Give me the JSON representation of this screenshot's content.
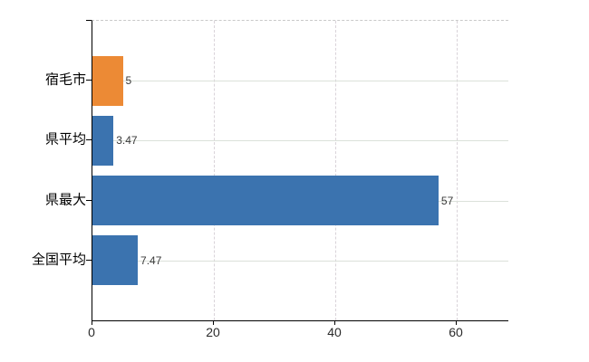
{
  "chart_data": {
    "type": "bar",
    "orientation": "horizontal",
    "title": "",
    "categories": [
      "宿毛市",
      "県平均",
      "県最大",
      "全国平均"
    ],
    "values": [
      5,
      3.47,
      57,
      7.47
    ],
    "value_labels": [
      "5",
      "3.47",
      "57",
      "7.47"
    ],
    "bar_colors": [
      "#ec8a35",
      "#3b73af",
      "#3b73af",
      "#3b73af"
    ],
    "xticks": [
      "0",
      "20",
      "40",
      "60"
    ],
    "xtick_values": [
      0,
      20,
      40,
      60
    ],
    "xlim": [
      0,
      68.5
    ],
    "grid": "on",
    "legend": "none",
    "colors": {
      "background": "#ffffff",
      "axis": "#000000",
      "horizontal_grid": "#dbe1da",
      "vertical_grid": "#d9d3d9",
      "plot_top_border": "#c9c9c9",
      "value_label_text": "#3a3a3a",
      "tick_label_text": "#2b2b2b",
      "category_label_text": "#000000",
      "bar_orange": "#ec8a35",
      "bar_blue": "#3b73af"
    }
  }
}
